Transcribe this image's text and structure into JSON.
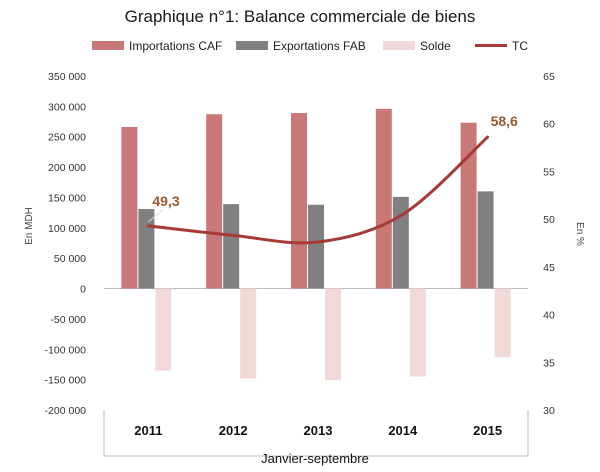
{
  "chart_data": {
    "type": "bar",
    "title": "Graphique n°1: Balance commerciale de biens",
    "xlabel": "Janvier-septembre",
    "ylabel": "En MDH",
    "y2label": "En %",
    "categories": [
      "2011",
      "2012",
      "2013",
      "2014",
      "2015"
    ],
    "ylim": [
      -200000,
      350000
    ],
    "y2lim": [
      30,
      65
    ],
    "yticks": [
      "350 000",
      "300 000",
      "250 000",
      "200 000",
      "150 000",
      "100 000",
      "50 000",
      "0",
      "-50 000",
      "-100 000",
      "-150 000",
      "-200 000"
    ],
    "y2ticks": [
      "65",
      "60",
      "55",
      "50",
      "45",
      "40",
      "35",
      "30"
    ],
    "series": [
      {
        "name": "Importations CAF",
        "type": "bar",
        "values": [
          266000,
          287000,
          289000,
          296000,
          273000
        ]
      },
      {
        "name": "Exportations FAB",
        "type": "bar",
        "values": [
          131000,
          139000,
          138000,
          151000,
          160000
        ]
      },
      {
        "name": "Solde",
        "type": "bar",
        "values": [
          -135000,
          -148000,
          -151000,
          -145000,
          -113000
        ]
      },
      {
        "name": "TC",
        "type": "line",
        "axis": "right",
        "values": [
          49.3,
          48.3,
          47.6,
          50.5,
          58.6
        ]
      }
    ],
    "annotations": [
      {
        "text": "49,3",
        "category": "2011",
        "series": "TC"
      },
      {
        "text": "58,6",
        "category": "2015",
        "series": "TC"
      }
    ],
    "legend": "top",
    "grid": false,
    "colors": {
      "Importations CAF": "#c97878",
      "Exportations FAB": "#808080",
      "Solde": "#f2d9d9",
      "TC": "#a53a36"
    }
  }
}
